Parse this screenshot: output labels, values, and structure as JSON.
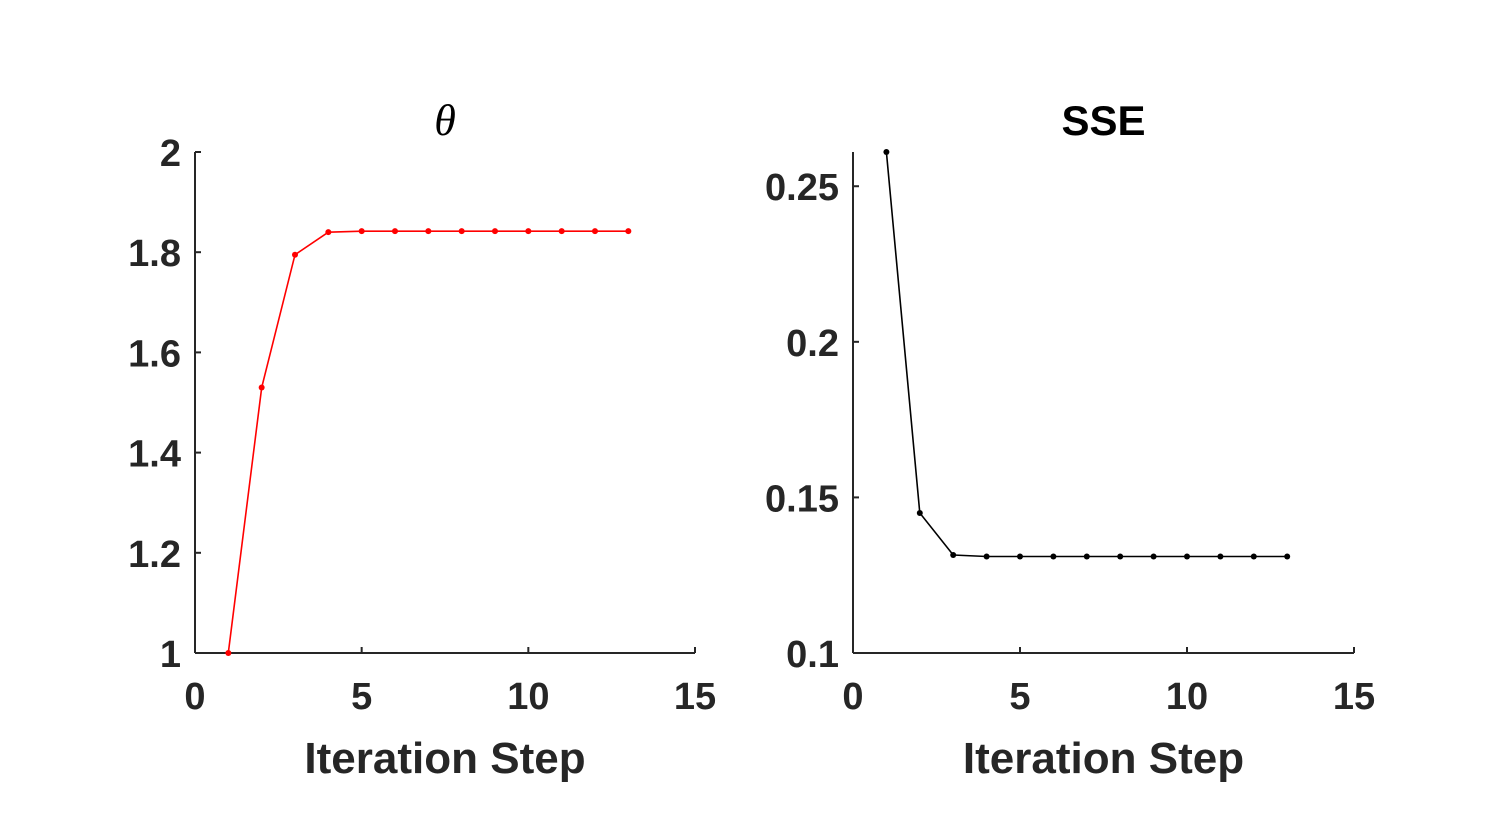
{
  "chart_data": [
    {
      "type": "line",
      "title": "θ",
      "xlabel": "Iteration Step",
      "ylabel": "",
      "xlim": [
        0,
        15
      ],
      "ylim": [
        1,
        2
      ],
      "xticks": [
        0,
        5,
        10,
        15
      ],
      "xtick_labels": [
        "0",
        "5",
        "10",
        "15"
      ],
      "yticks": [
        1,
        1.2,
        1.4,
        1.6,
        1.8,
        2
      ],
      "ytick_labels": [
        "1",
        "1.2",
        "1.4",
        "1.6",
        "1.8",
        "2"
      ],
      "grid": false,
      "series": [
        {
          "color": "#ff0000",
          "marker": "dot",
          "x": [
            1,
            2,
            3,
            4,
            5,
            6,
            7,
            8,
            9,
            10,
            11,
            12,
            13
          ],
          "y": [
            1.0,
            1.53,
            1.795,
            1.84,
            1.842,
            1.842,
            1.842,
            1.842,
            1.842,
            1.842,
            1.842,
            1.842,
            1.842
          ]
        }
      ]
    },
    {
      "type": "line",
      "title": "SSE",
      "xlabel": "Iteration Step",
      "ylabel": "",
      "xlim": [
        0,
        15
      ],
      "ylim": [
        0.1,
        0.261
      ],
      "xticks": [
        0,
        5,
        10,
        15
      ],
      "xtick_labels": [
        "0",
        "5",
        "10",
        "15"
      ],
      "yticks": [
        0.1,
        0.15,
        0.2,
        0.25
      ],
      "ytick_labels": [
        "0.1",
        "0.15",
        "0.2",
        "0.25"
      ],
      "grid": false,
      "series": [
        {
          "color": "#000000",
          "marker": "dot",
          "x": [
            1,
            2,
            3,
            4,
            5,
            6,
            7,
            8,
            9,
            10,
            11,
            12,
            13
          ],
          "y": [
            0.261,
            0.145,
            0.1315,
            0.131,
            0.131,
            0.131,
            0.131,
            0.131,
            0.131,
            0.131,
            0.131,
            0.131,
            0.131
          ]
        }
      ]
    }
  ]
}
